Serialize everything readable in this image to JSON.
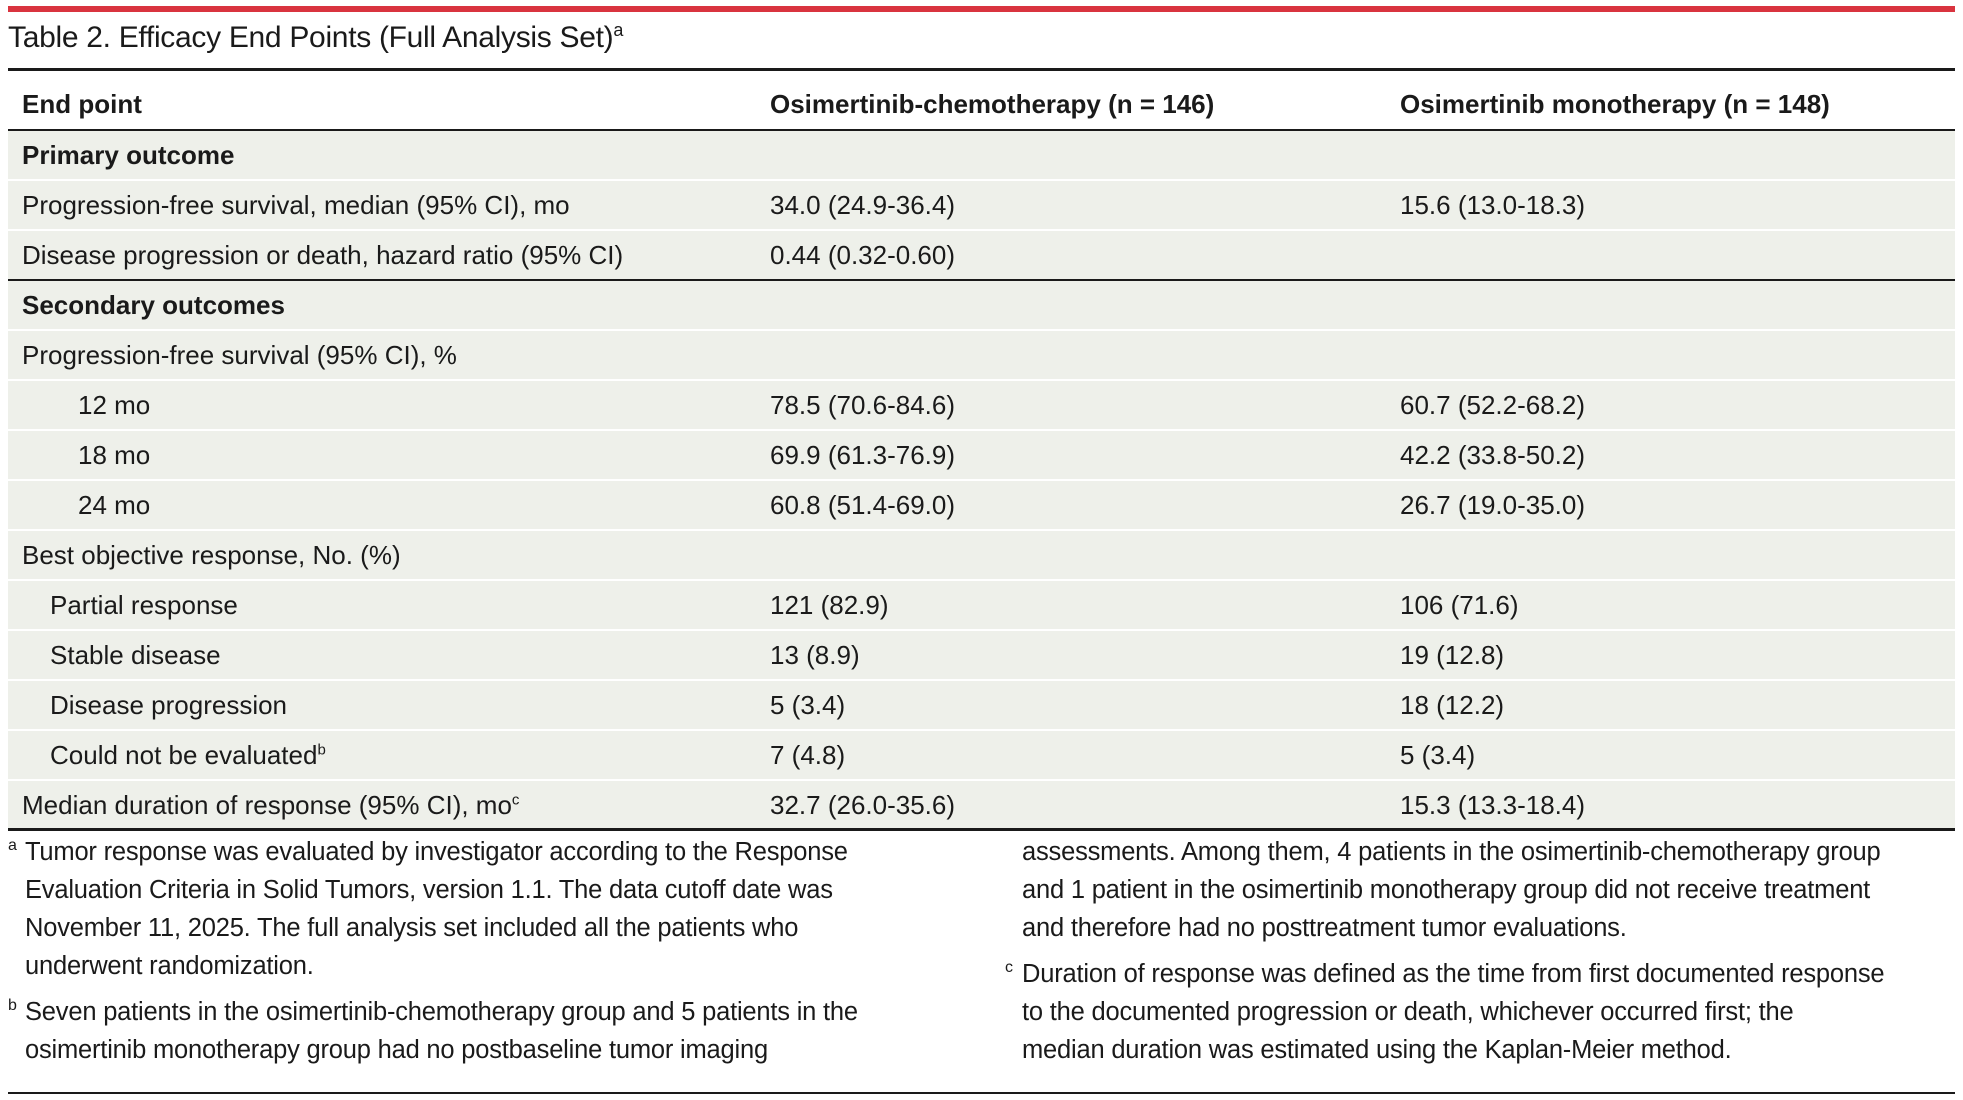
{
  "title": "Table 2. Efficacy End Points (Full Analysis Set)",
  "title_sup": "a",
  "columns": {
    "end_point": "End point",
    "combo": "Osimertinib-chemotherapy (n = 146)",
    "mono": "Osimertinib monotherapy (n = 148)"
  },
  "rows": [
    {
      "label": "Primary outcome",
      "combo": "",
      "mono": ""
    },
    {
      "label": "Progression-free survival, median (95% CI), mo",
      "combo": "34.0 (24.9-36.4)",
      "mono": "15.6 (13.0-18.3)"
    },
    {
      "label": "Disease progression or death, hazard ratio (95% CI)",
      "combo": "0.44 (0.32-0.60)",
      "mono": ""
    },
    {
      "label": "Secondary outcomes",
      "combo": "",
      "mono": ""
    },
    {
      "label": "Progression-free survival (95% CI), %",
      "combo": "",
      "mono": ""
    },
    {
      "label": "12 mo",
      "combo": "78.5 (70.6-84.6)",
      "mono": "60.7 (52.2-68.2)"
    },
    {
      "label": "18 mo",
      "combo": "69.9 (61.3-76.9)",
      "mono": "42.2 (33.8-50.2)"
    },
    {
      "label": "24 mo",
      "combo": "60.8 (51.4-69.0)",
      "mono": "26.7 (19.0-35.0)"
    },
    {
      "label": "Best objective response, No. (%)",
      "combo": "",
      "mono": ""
    },
    {
      "label": "Partial response",
      "combo": "121 (82.9)",
      "mono": "106 (71.6)"
    },
    {
      "label": "Stable disease",
      "combo": "13 (8.9)",
      "mono": "19 (12.8)"
    },
    {
      "label": "Disease progression",
      "combo": "5 (3.4)",
      "mono": "18 (12.2)"
    },
    {
      "label": "Could not be evaluated",
      "sup": "b",
      "combo": "7 (4.8)",
      "mono": "5 (3.4)"
    },
    {
      "label": "Median duration of response (95% CI), mo",
      "sup": "c",
      "combo": "32.7 (26.0-35.6)",
      "mono": "15.3 (13.3-18.4)"
    }
  ],
  "footnotes": {
    "a_mark": "a",
    "a_lines": [
      "Tumor response was evaluated by investigator according to the Response",
      "Evaluation Criteria in Solid Tumors, version 1.1. The data cutoff date was",
      "November 11, 2025. The full analysis set included all the patients who",
      "underwent randomization."
    ],
    "b_mark": "b",
    "b_lines": [
      "Seven patients in the osimertinib-chemotherapy group and 5 patients in the",
      "osimertinib monotherapy group had no postbaseline tumor imaging",
      "assessments. Among them, 4 patients in the osimertinib-chemotherapy group",
      "and 1 patient in the osimertinib monotherapy group did not receive treatment",
      "and therefore had no posttreatment tumor evaluations."
    ],
    "c_mark": "c",
    "c_lines": [
      "Duration of response was defined as the time from first documented response",
      "to the documented progression or death, whichever occurred first; the",
      "median duration was estimated using the Kaplan-Meier method."
    ]
  }
}
